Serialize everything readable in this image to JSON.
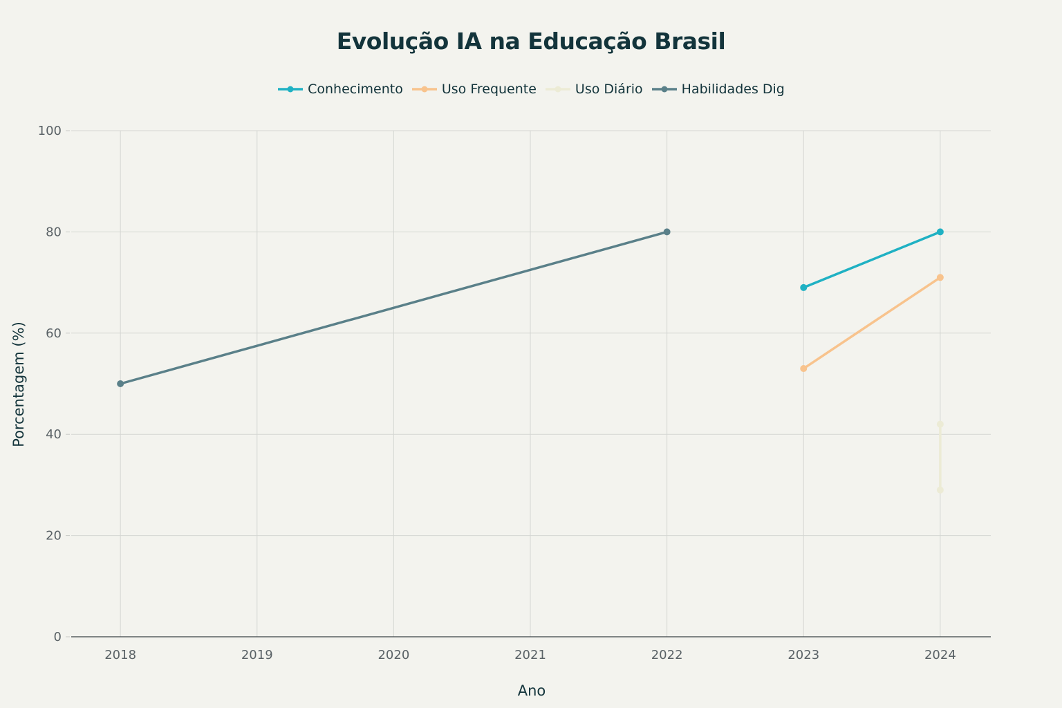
{
  "chart_data": {
    "type": "line",
    "title": "Evolução IA na Educação Brasil",
    "xlabel": "Ano",
    "ylabel": "Porcentagem (%)",
    "x_ticks": [
      "2018",
      "2019",
      "2020",
      "2021",
      "2022",
      "2023",
      "2024"
    ],
    "y_ticks": [
      "0",
      "20",
      "40",
      "60",
      "80",
      "100"
    ],
    "xlim": [
      2017.64,
      2024.37
    ],
    "ylim": [
      0,
      100
    ],
    "grid": true,
    "legend_position": "top-center",
    "series": [
      {
        "name": "Conhecimento",
        "color": "#1fb1c3",
        "points": [
          [
            2023,
            69
          ],
          [
            2024,
            80
          ]
        ]
      },
      {
        "name": "Uso Frequente",
        "color": "#f8c38d",
        "points": [
          [
            2023,
            53
          ],
          [
            2024,
            71
          ]
        ]
      },
      {
        "name": "Uso Diário",
        "color": "#ecebd5",
        "points": [
          [
            2024,
            42
          ],
          [
            2024,
            29
          ]
        ]
      },
      {
        "name": "Habilidades Dig",
        "color": "#5a8089",
        "points": [
          [
            2018,
            50
          ],
          [
            2022,
            80
          ]
        ]
      }
    ]
  }
}
